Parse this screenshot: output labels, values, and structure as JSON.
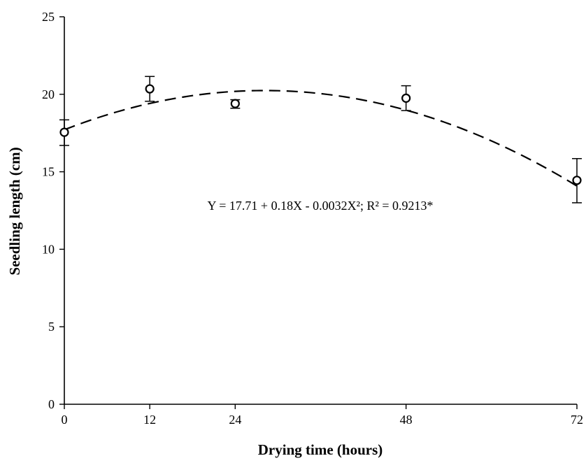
{
  "chart_data": {
    "type": "scatter",
    "title": "",
    "xlabel": "Drying time (hours)",
    "ylabel": "Seedling length (cm)",
    "xlim": [
      0,
      72
    ],
    "ylim": [
      0,
      25
    ],
    "x_ticks": [
      0,
      12,
      24,
      48,
      72
    ],
    "y_ticks": [
      0,
      5,
      10,
      15,
      20,
      25
    ],
    "grid": false,
    "series": [
      {
        "marker": "open-circle",
        "points": [
          {
            "x": 0,
            "y": 17.55,
            "err_low": 16.7,
            "err_high": 18.35
          },
          {
            "x": 12,
            "y": 20.35,
            "err_low": 19.55,
            "err_high": 21.15
          },
          {
            "x": 24,
            "y": 19.4,
            "err_low": 19.1,
            "err_high": 19.65
          },
          {
            "x": 48,
            "y": 19.75,
            "err_low": 18.95,
            "err_high": 20.55
          },
          {
            "x": 72,
            "y": 14.45,
            "err_low": 13.0,
            "err_high": 15.85
          }
        ]
      }
    ],
    "trendline": {
      "type": "quadratic",
      "style": "dashed",
      "intercept": 17.71,
      "linear": 0.18,
      "quadratic": -0.0032
    },
    "annotation": "Y = 17.71 + 0.18X - 0.0032X²; R² = 0.9213*"
  }
}
